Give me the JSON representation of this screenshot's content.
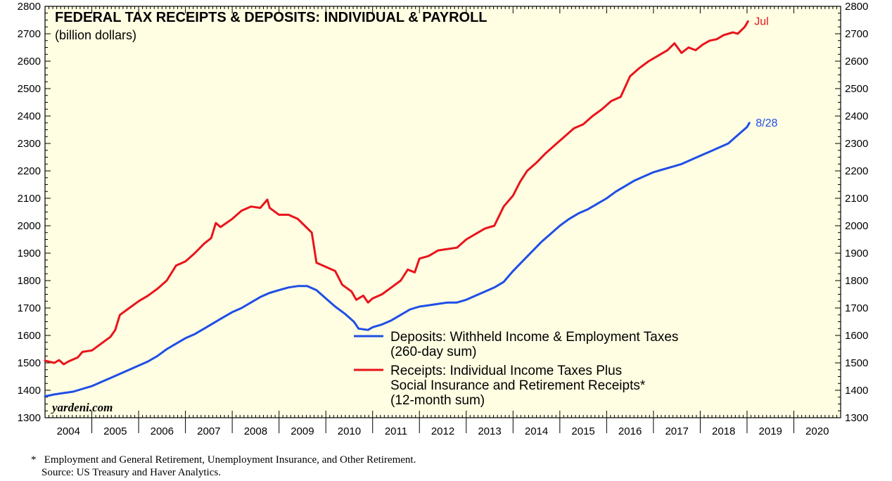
{
  "chart_data": {
    "type": "line",
    "title": "FEDERAL TAX RECEIPTS & DEPOSITS: INDIVIDUAL & PAYROLL",
    "subtitle": "(billion dollars)",
    "ylim": [
      1300,
      2800
    ],
    "y_ticks": [
      1300,
      1400,
      1500,
      1600,
      1700,
      1800,
      1900,
      2000,
      2100,
      2200,
      2300,
      2400,
      2500,
      2600,
      2700,
      2800
    ],
    "xlim": [
      2004,
      2021
    ],
    "x_categories": [
      "2004",
      "2005",
      "2006",
      "2007",
      "2008",
      "2009",
      "2010",
      "2011",
      "2012",
      "2013",
      "2014",
      "2015",
      "2016",
      "2017",
      "2018",
      "2019",
      "2020"
    ],
    "series": [
      {
        "name": "Receipts",
        "color": "#e8141b",
        "legend": [
          "Receipts: Individual Income Taxes Plus",
          "Social Insurance and Retirement Receipts*",
          "(12-month sum)"
        ],
        "end_label": "Jul",
        "points": [
          [
            2004.0,
            1508
          ],
          [
            2004.2,
            1500
          ],
          [
            2004.3,
            1510
          ],
          [
            2004.4,
            1495
          ],
          [
            2004.5,
            1505
          ],
          [
            2004.7,
            1520
          ],
          [
            2004.8,
            1540
          ],
          [
            2005.0,
            1545
          ],
          [
            2005.2,
            1570
          ],
          [
            2005.4,
            1595
          ],
          [
            2005.5,
            1620
          ],
          [
            2005.6,
            1675
          ],
          [
            2005.8,
            1700
          ],
          [
            2006.0,
            1725
          ],
          [
            2006.2,
            1745
          ],
          [
            2006.4,
            1770
          ],
          [
            2006.6,
            1800
          ],
          [
            2006.8,
            1855
          ],
          [
            2007.0,
            1870
          ],
          [
            2007.2,
            1900
          ],
          [
            2007.4,
            1935
          ],
          [
            2007.55,
            1955
          ],
          [
            2007.65,
            2010
          ],
          [
            2007.75,
            1995
          ],
          [
            2008.0,
            2025
          ],
          [
            2008.2,
            2055
          ],
          [
            2008.4,
            2070
          ],
          [
            2008.6,
            2065
          ],
          [
            2008.75,
            2095
          ],
          [
            2008.8,
            2065
          ],
          [
            2009.0,
            2040
          ],
          [
            2009.2,
            2040
          ],
          [
            2009.4,
            2025
          ],
          [
            2009.55,
            2000
          ],
          [
            2009.7,
            1975
          ],
          [
            2009.8,
            1865
          ],
          [
            2010.0,
            1850
          ],
          [
            2010.2,
            1835
          ],
          [
            2010.35,
            1785
          ],
          [
            2010.55,
            1760
          ],
          [
            2010.65,
            1730
          ],
          [
            2010.8,
            1745
          ],
          [
            2010.9,
            1720
          ],
          [
            2011.0,
            1735
          ],
          [
            2011.2,
            1750
          ],
          [
            2011.4,
            1775
          ],
          [
            2011.6,
            1800
          ],
          [
            2011.75,
            1840
          ],
          [
            2011.9,
            1830
          ],
          [
            2012.0,
            1880
          ],
          [
            2012.2,
            1890
          ],
          [
            2012.4,
            1910
          ],
          [
            2012.6,
            1915
          ],
          [
            2012.8,
            1920
          ],
          [
            2013.0,
            1950
          ],
          [
            2013.2,
            1970
          ],
          [
            2013.4,
            1990
          ],
          [
            2013.6,
            2000
          ],
          [
            2013.8,
            2070
          ],
          [
            2014.0,
            2110
          ],
          [
            2014.15,
            2160
          ],
          [
            2014.3,
            2200
          ],
          [
            2014.5,
            2230
          ],
          [
            2014.7,
            2265
          ],
          [
            2014.9,
            2295
          ],
          [
            2015.1,
            2325
          ],
          [
            2015.3,
            2355
          ],
          [
            2015.5,
            2370
          ],
          [
            2015.7,
            2400
          ],
          [
            2015.9,
            2425
          ],
          [
            2016.1,
            2455
          ],
          [
            2016.3,
            2470
          ],
          [
            2016.5,
            2545
          ],
          [
            2016.7,
            2575
          ],
          [
            2016.9,
            2600
          ],
          [
            2017.1,
            2620
          ],
          [
            2017.3,
            2640
          ],
          [
            2017.45,
            2665
          ],
          [
            2017.6,
            2630
          ],
          [
            2017.75,
            2650
          ],
          [
            2017.9,
            2640
          ],
          [
            2018.05,
            2660
          ],
          [
            2018.2,
            2675
          ],
          [
            2018.35,
            2680
          ],
          [
            2018.5,
            2695
          ],
          [
            2018.7,
            2705
          ],
          [
            2018.8,
            2700
          ],
          [
            2018.95,
            2725
          ],
          [
            2019.02,
            2745
          ]
        ]
      },
      {
        "name": "Deposits",
        "color": "#1f4ee6",
        "legend": [
          "Deposits: Withheld Income & Employment Taxes",
          "(260-day sum)"
        ],
        "end_label": "8/28",
        "points": [
          [
            2004.0,
            1378
          ],
          [
            2004.2,
            1385
          ],
          [
            2004.4,
            1390
          ],
          [
            2004.6,
            1395
          ],
          [
            2004.8,
            1405
          ],
          [
            2005.0,
            1415
          ],
          [
            2005.2,
            1430
          ],
          [
            2005.4,
            1445
          ],
          [
            2005.6,
            1460
          ],
          [
            2005.8,
            1475
          ],
          [
            2006.0,
            1490
          ],
          [
            2006.2,
            1505
          ],
          [
            2006.4,
            1525
          ],
          [
            2006.6,
            1550
          ],
          [
            2006.8,
            1570
          ],
          [
            2007.0,
            1590
          ],
          [
            2007.2,
            1605
          ],
          [
            2007.4,
            1625
          ],
          [
            2007.6,
            1645
          ],
          [
            2007.8,
            1665
          ],
          [
            2008.0,
            1685
          ],
          [
            2008.2,
            1700
          ],
          [
            2008.4,
            1720
          ],
          [
            2008.6,
            1740
          ],
          [
            2008.8,
            1755
          ],
          [
            2009.0,
            1765
          ],
          [
            2009.2,
            1775
          ],
          [
            2009.4,
            1780
          ],
          [
            2009.6,
            1780
          ],
          [
            2009.8,
            1765
          ],
          [
            2010.0,
            1735
          ],
          [
            2010.2,
            1705
          ],
          [
            2010.4,
            1680
          ],
          [
            2010.6,
            1650
          ],
          [
            2010.7,
            1625
          ],
          [
            2010.9,
            1620
          ],
          [
            2011.0,
            1630
          ],
          [
            2011.2,
            1640
          ],
          [
            2011.4,
            1655
          ],
          [
            2011.6,
            1675
          ],
          [
            2011.8,
            1695
          ],
          [
            2012.0,
            1705
          ],
          [
            2012.2,
            1710
          ],
          [
            2012.4,
            1715
          ],
          [
            2012.6,
            1720
          ],
          [
            2012.8,
            1720
          ],
          [
            2013.0,
            1730
          ],
          [
            2013.2,
            1745
          ],
          [
            2013.4,
            1760
          ],
          [
            2013.6,
            1775
          ],
          [
            2013.8,
            1795
          ],
          [
            2014.0,
            1835
          ],
          [
            2014.2,
            1870
          ],
          [
            2014.4,
            1905
          ],
          [
            2014.6,
            1940
          ],
          [
            2014.8,
            1970
          ],
          [
            2015.0,
            2000
          ],
          [
            2015.2,
            2025
          ],
          [
            2015.4,
            2045
          ],
          [
            2015.6,
            2060
          ],
          [
            2015.8,
            2080
          ],
          [
            2016.0,
            2100
          ],
          [
            2016.2,
            2125
          ],
          [
            2016.4,
            2145
          ],
          [
            2016.6,
            2165
          ],
          [
            2016.8,
            2180
          ],
          [
            2017.0,
            2195
          ],
          [
            2017.2,
            2205
          ],
          [
            2017.4,
            2215
          ],
          [
            2017.6,
            2225
          ],
          [
            2017.8,
            2240
          ],
          [
            2018.0,
            2255
          ],
          [
            2018.2,
            2270
          ],
          [
            2018.4,
            2285
          ],
          [
            2018.6,
            2300
          ],
          [
            2018.8,
            2330
          ],
          [
            2019.0,
            2360
          ],
          [
            2019.05,
            2375
          ]
        ]
      }
    ]
  },
  "brand": "yardeni.com",
  "footnotes": [
    "*   Employment and General Retirement, Unemployment Insurance, and Other Retirement.",
    "    Source: US Treasury and Haver Analytics."
  ]
}
